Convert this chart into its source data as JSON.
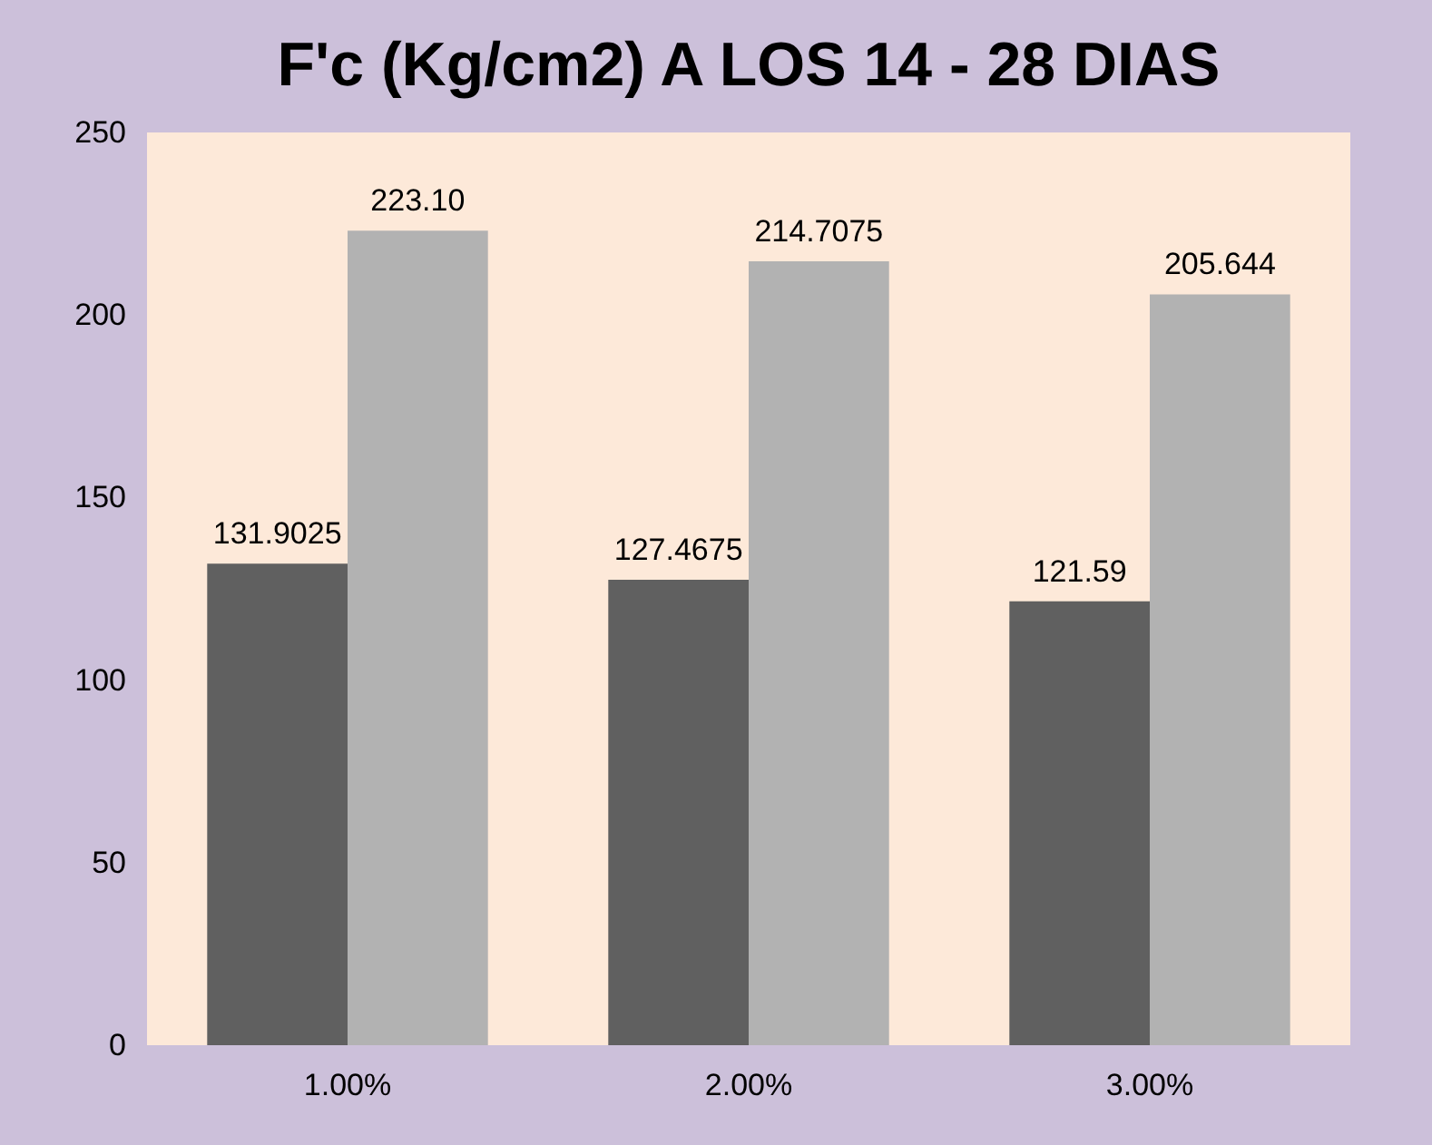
{
  "chart_data": {
    "type": "bar",
    "title": "F'c (Kg/cm2) A LOS 14 - 28 DIAS",
    "categories": [
      "1.00%",
      "2.00%",
      "3.00%"
    ],
    "series": [
      {
        "color": "#606060",
        "values": [
          131.9025,
          127.4675,
          121.59
        ],
        "value_labels": [
          "131.9025",
          "127.4675",
          "121.59"
        ]
      },
      {
        "color": "#b2b2b2",
        "values": [
          223.1,
          214.7075,
          205.644
        ],
        "value_labels": [
          "223.10",
          "214.7075",
          "205.644"
        ]
      }
    ],
    "ylim": [
      0,
      250
    ],
    "yticks": [
      0,
      50,
      100,
      150,
      200,
      250
    ],
    "grid": false,
    "legend": false
  }
}
